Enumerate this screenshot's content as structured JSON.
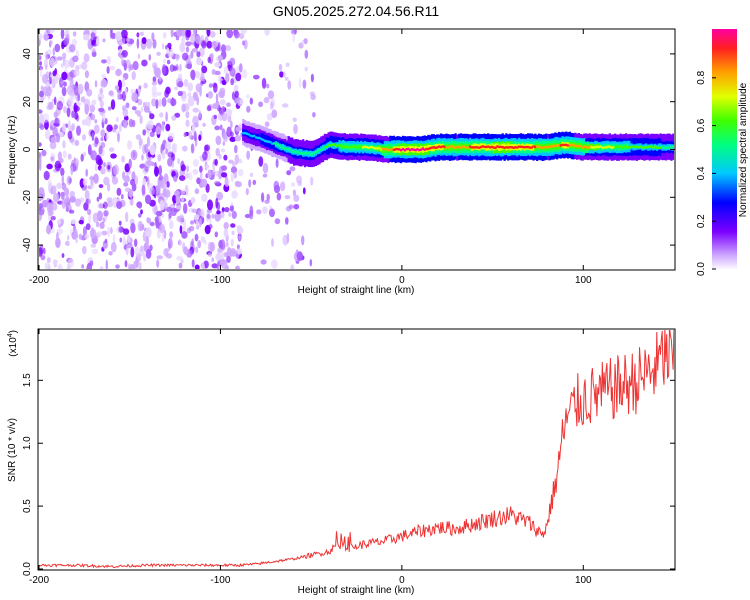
{
  "title": "GN05.2025.272.04.56.R11",
  "chart_data": [
    {
      "type": "heatmap",
      "panel": "spectrogram",
      "xlabel": "Height of straight line (km)",
      "ylabel": "Frequency (Hz)",
      "xlim": [
        -200,
        150
      ],
      "ylim": [
        -50,
        50
      ],
      "xticks": [
        -200,
        -100,
        0,
        100
      ],
      "xtick_labels": [
        "-200",
        "-100",
        "0",
        "100"
      ],
      "yticks": [
        -40,
        -20,
        0,
        20,
        40
      ],
      "ytick_labels": [
        "-40",
        "-20",
        "0",
        "20",
        "40"
      ],
      "colorbar": {
        "label": "Normalized spectral amplitude",
        "range": [
          0.0,
          1.0
        ],
        "ticks": [
          0.0,
          0.2,
          0.4,
          0.6,
          0.8
        ],
        "tick_labels": [
          "0.0",
          "0.2",
          "0.4",
          "0.6",
          "0.8"
        ],
        "colors": [
          "#ffffff",
          "#cfa8ff",
          "#7a00ff",
          "#0000ff",
          "#00c8ff",
          "#00ff80",
          "#40ff00",
          "#e0ff00",
          "#ffa000",
          "#ff2020",
          "#ff00a0"
        ]
      },
      "noise_region_km": [
        -200,
        -48
      ],
      "signal_ridge": {
        "x": [
          -88,
          -80,
          -70,
          -60,
          -50,
          -40,
          -30,
          -20,
          -10,
          0,
          10,
          20,
          30,
          40,
          50,
          60,
          70,
          80,
          90,
          100,
          110,
          120,
          130,
          140,
          150
        ],
        "freq_hz": [
          7,
          5,
          2,
          -1,
          -2,
          2,
          1,
          1,
          0,
          0,
          0,
          1,
          1,
          1,
          1,
          1,
          1,
          1,
          2,
          1,
          1,
          1,
          1,
          1,
          1
        ],
        "amplitude": [
          0.35,
          0.4,
          0.45,
          0.5,
          0.5,
          0.55,
          0.6,
          0.65,
          0.75,
          0.95,
          0.95,
          0.85,
          0.8,
          0.85,
          0.9,
          0.9,
          0.85,
          0.8,
          0.85,
          0.75,
          0.7,
          0.6,
          0.55,
          0.55,
          0.5
        ]
      }
    },
    {
      "type": "line",
      "panel": "snr",
      "xlabel": "Height of straight line (km)",
      "ylabel": "SNR (10 * v/v)",
      "scale_label": "(x10",
      "scale_exp": "4",
      "series_color": "#ee3333",
      "xlim": [
        -200,
        150
      ],
      "ylim": [
        0,
        1.9
      ],
      "xticks": [
        -200,
        -100,
        0,
        100
      ],
      "xtick_labels": [
        "-200",
        "-100",
        "0",
        "100"
      ],
      "yticks": [
        0,
        0.5,
        1.0,
        1.5
      ],
      "ytick_labels": [
        "0.0",
        "0.5",
        "1.0",
        "1.5"
      ],
      "series": [
        {
          "name": "SNR",
          "x": [
            -200,
            -180,
            -160,
            -140,
            -120,
            -100,
            -90,
            -80,
            -70,
            -60,
            -50,
            -40,
            -35,
            -30,
            -20,
            -10,
            0,
            10,
            20,
            30,
            40,
            50,
            60,
            70,
            75,
            78,
            80,
            82,
            85,
            88,
            90,
            95,
            100,
            110,
            120,
            130,
            140,
            145,
            150
          ],
          "values": [
            0.03,
            0.03,
            0.02,
            0.03,
            0.03,
            0.03,
            0.03,
            0.04,
            0.06,
            0.08,
            0.11,
            0.14,
            0.2,
            0.16,
            0.2,
            0.22,
            0.26,
            0.3,
            0.33,
            0.32,
            0.36,
            0.4,
            0.43,
            0.37,
            0.3,
            0.28,
            0.35,
            0.5,
            0.7,
            1.0,
            1.15,
            1.3,
            1.35,
            1.4,
            1.45,
            1.5,
            1.6,
            1.7,
            1.65
          ]
        }
      ]
    }
  ]
}
